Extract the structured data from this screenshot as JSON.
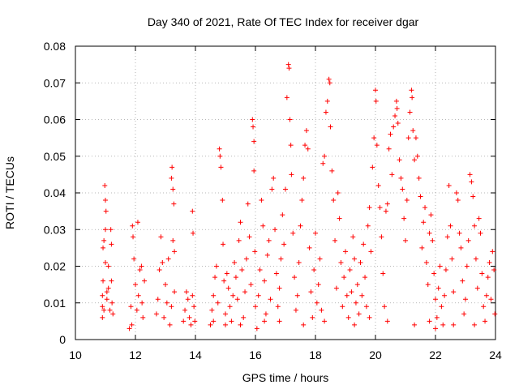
{
  "chart_data": {
    "type": "scatter",
    "title": "Day 340 of 2021, Rate Of TEC Index for receiver dgar",
    "xlabel": "GPS time / hours",
    "ylabel": "ROTI / TECUs",
    "xlim": [
      10,
      24
    ],
    "ylim": [
      0,
      0.08
    ],
    "xticks": [
      "10",
      "12",
      "14",
      "16",
      "18",
      "20",
      "22",
      "24"
    ],
    "yticks": [
      "0",
      "0.01",
      "0.02",
      "0.03",
      "0.04",
      "0.05",
      "0.06",
      "0.07",
      "0.08"
    ],
    "grid": true,
    "marker": "+",
    "color": "#ff0000",
    "series": [
      {
        "points": [
          [
            10.9,
            0.006
          ],
          [
            10.9,
            0.009
          ],
          [
            10.9,
            0.012
          ],
          [
            10.92,
            0.016
          ],
          [
            10.92,
            0.025
          ],
          [
            10.95,
            0.027
          ],
          [
            10.98,
            0.042
          ],
          [
            11.0,
            0.038
          ],
          [
            11.02,
            0.035
          ],
          [
            11.0,
            0.03
          ],
          [
            11.05,
            0.011
          ],
          [
            11.05,
            0.013
          ],
          [
            11.1,
            0.02
          ],
          [
            11.1,
            0.014
          ],
          [
            11.15,
            0.008
          ],
          [
            11.18,
            0.03
          ],
          [
            11.2,
            0.026
          ],
          [
            11.22,
            0.01
          ],
          [
            11.25,
            0.007
          ],
          [
            11.2,
            0.016
          ],
          [
            10.95,
            0.008
          ],
          [
            11.0,
            0.021
          ],
          [
            11.8,
            0.003
          ],
          [
            11.85,
            0.009
          ],
          [
            11.9,
            0.031
          ],
          [
            11.92,
            0.028
          ],
          [
            11.95,
            0.022
          ],
          [
            12.0,
            0.015
          ],
          [
            12.05,
            0.008
          ],
          [
            12.1,
            0.012
          ],
          [
            12.15,
            0.019
          ],
          [
            12.2,
            0.02
          ],
          [
            12.25,
            0.006
          ],
          [
            12.3,
            0.016
          ],
          [
            12.22,
            0.01
          ],
          [
            12.08,
            0.032
          ],
          [
            11.88,
            0.004
          ],
          [
            12.7,
            0.007
          ],
          [
            12.75,
            0.011
          ],
          [
            12.8,
            0.019
          ],
          [
            12.85,
            0.028
          ],
          [
            12.9,
            0.021
          ],
          [
            12.95,
            0.006
          ],
          [
            13.0,
            0.015
          ],
          [
            13.05,
            0.01
          ],
          [
            13.1,
            0.022
          ],
          [
            13.15,
            0.004
          ],
          [
            13.2,
            0.044
          ],
          [
            13.22,
            0.047
          ],
          [
            13.25,
            0.041
          ],
          [
            13.28,
            0.037
          ],
          [
            13.25,
            0.027
          ],
          [
            13.3,
            0.024
          ],
          [
            13.3,
            0.013
          ],
          [
            13.2,
            0.009
          ],
          [
            13.6,
            0.005
          ],
          [
            13.65,
            0.008
          ],
          [
            13.7,
            0.013
          ],
          [
            13.75,
            0.011
          ],
          [
            13.8,
            0.006
          ],
          [
            13.85,
            0.004
          ],
          [
            13.9,
            0.035
          ],
          [
            13.92,
            0.029
          ],
          [
            13.95,
            0.009
          ],
          [
            13.98,
            0.005
          ],
          [
            13.9,
            0.012
          ],
          [
            14.5,
            0.004
          ],
          [
            14.55,
            0.008
          ],
          [
            14.6,
            0.012
          ],
          [
            14.65,
            0.017
          ],
          [
            14.7,
            0.02
          ],
          [
            14.75,
            0.01
          ],
          [
            14.8,
            0.052
          ],
          [
            14.82,
            0.05
          ],
          [
            14.85,
            0.047
          ],
          [
            14.9,
            0.038
          ],
          [
            14.92,
            0.026
          ],
          [
            14.95,
            0.016
          ],
          [
            15.0,
            0.007
          ],
          [
            15.05,
            0.018
          ],
          [
            15.1,
            0.014
          ],
          [
            15.15,
            0.009
          ],
          [
            15.2,
            0.005
          ],
          [
            15.25,
            0.012
          ],
          [
            15.3,
            0.021
          ],
          [
            15.35,
            0.017
          ],
          [
            15.4,
            0.011
          ],
          [
            15.45,
            0.027
          ],
          [
            15.5,
            0.032
          ],
          [
            15.55,
            0.019
          ],
          [
            15.6,
            0.006
          ],
          [
            15.65,
            0.013
          ],
          [
            15.7,
            0.022
          ],
          [
            15.75,
            0.037
          ],
          [
            15.8,
            0.028
          ],
          [
            15.85,
            0.015
          ],
          [
            15.9,
            0.06
          ],
          [
            15.92,
            0.058
          ],
          [
            15.95,
            0.054
          ],
          [
            15.95,
            0.046
          ],
          [
            15.98,
            0.024
          ],
          [
            16.0,
            0.009
          ],
          [
            16.05,
            0.003
          ],
          [
            16.1,
            0.012
          ],
          [
            16.15,
            0.019
          ],
          [
            16.2,
            0.038
          ],
          [
            16.25,
            0.031
          ],
          [
            16.3,
            0.016
          ],
          [
            16.35,
            0.007
          ],
          [
            16.4,
            0.023
          ],
          [
            16.45,
            0.027
          ],
          [
            16.5,
            0.011
          ],
          [
            16.55,
            0.041
          ],
          [
            16.6,
            0.044
          ],
          [
            16.65,
            0.03
          ],
          [
            16.7,
            0.018
          ],
          [
            16.75,
            0.009
          ],
          [
            16.8,
            0.014
          ],
          [
            16.85,
            0.022
          ],
          [
            16.9,
            0.034
          ],
          [
            16.95,
            0.026
          ],
          [
            17.0,
            0.041
          ],
          [
            17.05,
            0.066
          ],
          [
            17.1,
            0.075
          ],
          [
            17.12,
            0.074
          ],
          [
            17.15,
            0.06
          ],
          [
            17.18,
            0.053
          ],
          [
            17.2,
            0.045
          ],
          [
            17.25,
            0.029
          ],
          [
            17.3,
            0.017
          ],
          [
            17.35,
            0.008
          ],
          [
            17.4,
            0.012
          ],
          [
            17.45,
            0.021
          ],
          [
            17.5,
            0.031
          ],
          [
            17.55,
            0.038
          ],
          [
            17.6,
            0.044
          ],
          [
            17.65,
            0.053
          ],
          [
            17.7,
            0.057
          ],
          [
            17.75,
            0.052
          ],
          [
            17.8,
            0.025
          ],
          [
            17.85,
            0.013
          ],
          [
            17.9,
            0.006
          ],
          [
            17.95,
            0.019
          ],
          [
            18.0,
            0.029
          ],
          [
            18.05,
            0.01
          ],
          [
            18.1,
            0.015
          ],
          [
            18.15,
            0.022
          ],
          [
            18.2,
            0.008
          ],
          [
            18.25,
            0.048
          ],
          [
            18.3,
            0.05
          ],
          [
            18.35,
            0.062
          ],
          [
            18.4,
            0.065
          ],
          [
            18.45,
            0.071
          ],
          [
            18.48,
            0.07
          ],
          [
            18.5,
            0.058
          ],
          [
            18.55,
            0.046
          ],
          [
            18.6,
            0.038
          ],
          [
            18.65,
            0.027
          ],
          [
            18.7,
            0.014
          ],
          [
            18.75,
            0.04
          ],
          [
            18.8,
            0.033
          ],
          [
            18.85,
            0.021
          ],
          [
            18.9,
            0.009
          ],
          [
            18.95,
            0.017
          ],
          [
            19.0,
            0.024
          ],
          [
            19.05,
            0.012
          ],
          [
            19.1,
            0.006
          ],
          [
            19.15,
            0.019
          ],
          [
            19.2,
            0.013
          ],
          [
            19.25,
            0.028
          ],
          [
            19.3,
            0.022
          ],
          [
            19.35,
            0.01
          ],
          [
            19.4,
            0.015
          ],
          [
            19.45,
            0.007
          ],
          [
            19.5,
            0.021
          ],
          [
            19.55,
            0.012
          ],
          [
            19.6,
            0.026
          ],
          [
            19.65,
            0.017
          ],
          [
            19.7,
            0.009
          ],
          [
            19.75,
            0.031
          ],
          [
            19.8,
            0.036
          ],
          [
            19.85,
            0.024
          ],
          [
            19.9,
            0.047
          ],
          [
            19.95,
            0.055
          ],
          [
            20.0,
            0.068
          ],
          [
            20.02,
            0.065
          ],
          [
            20.05,
            0.053
          ],
          [
            20.1,
            0.042
          ],
          [
            20.15,
            0.036
          ],
          [
            20.2,
            0.028
          ],
          [
            20.25,
            0.018
          ],
          [
            20.3,
            0.009
          ],
          [
            20.35,
            0.035
          ],
          [
            20.4,
            0.037
          ],
          [
            20.45,
            0.052
          ],
          [
            20.5,
            0.056
          ],
          [
            20.55,
            0.045
          ],
          [
            20.6,
            0.058
          ],
          [
            20.65,
            0.061
          ],
          [
            20.7,
            0.065
          ],
          [
            20.72,
            0.063
          ],
          [
            20.75,
            0.059
          ],
          [
            20.8,
            0.049
          ],
          [
            20.85,
            0.044
          ],
          [
            20.9,
            0.041
          ],
          [
            20.95,
            0.033
          ],
          [
            21.0,
            0.027
          ],
          [
            21.05,
            0.038
          ],
          [
            21.1,
            0.055
          ],
          [
            21.15,
            0.062
          ],
          [
            21.2,
            0.068
          ],
          [
            21.22,
            0.066
          ],
          [
            21.25,
            0.057
          ],
          [
            21.3,
            0.049
          ],
          [
            21.35,
            0.055
          ],
          [
            21.4,
            0.05
          ],
          [
            21.45,
            0.044
          ],
          [
            21.5,
            0.039
          ],
          [
            21.55,
            0.025
          ],
          [
            21.6,
            0.032
          ],
          [
            21.65,
            0.036
          ],
          [
            21.7,
            0.021
          ],
          [
            21.75,
            0.015
          ],
          [
            21.8,
            0.029
          ],
          [
            21.85,
            0.034
          ],
          [
            21.9,
            0.027
          ],
          [
            21.95,
            0.018
          ],
          [
            22.0,
            0.011
          ],
          [
            22.05,
            0.006
          ],
          [
            22.1,
            0.014
          ],
          [
            22.15,
            0.02
          ],
          [
            22.2,
            0.009
          ],
          [
            22.25,
            0.004
          ],
          [
            22.3,
            0.012
          ],
          [
            22.35,
            0.019
          ],
          [
            22.4,
            0.028
          ],
          [
            22.45,
            0.042
          ],
          [
            22.5,
            0.031
          ],
          [
            22.55,
            0.022
          ],
          [
            22.6,
            0.013
          ],
          [
            22.7,
            0.04
          ],
          [
            22.75,
            0.038
          ],
          [
            22.8,
            0.029
          ],
          [
            22.85,
            0.025
          ],
          [
            22.9,
            0.016
          ],
          [
            22.95,
            0.007
          ],
          [
            23.0,
            0.011
          ],
          [
            23.05,
            0.02
          ],
          [
            23.1,
            0.027
          ],
          [
            23.15,
            0.045
          ],
          [
            23.2,
            0.043
          ],
          [
            23.25,
            0.039
          ],
          [
            23.3,
            0.031
          ],
          [
            23.35,
            0.022
          ],
          [
            23.4,
            0.014
          ],
          [
            23.45,
            0.033
          ],
          [
            23.5,
            0.029
          ],
          [
            23.55,
            0.018
          ],
          [
            23.6,
            0.009
          ],
          [
            23.65,
            0.005
          ],
          [
            23.7,
            0.012
          ],
          [
            23.75,
            0.017
          ],
          [
            23.8,
            0.021
          ],
          [
            23.85,
            0.011
          ],
          [
            23.9,
            0.024
          ],
          [
            23.95,
            0.019
          ],
          [
            23.98,
            0.007
          ],
          [
            15.5,
            0.004
          ],
          [
            16.3,
            0.005
          ],
          [
            17.6,
            0.004
          ],
          [
            18.3,
            0.005
          ],
          [
            19.3,
            0.004
          ],
          [
            20.4,
            0.005
          ],
          [
            21.3,
            0.004
          ],
          [
            22.6,
            0.004
          ],
          [
            23.3,
            0.004
          ],
          [
            15.0,
            0.004
          ],
          [
            16.8,
            0.005
          ],
          [
            19.8,
            0.006
          ],
          [
            21.8,
            0.005
          ],
          [
            14.6,
            0.005
          ],
          [
            22.0,
            0.003
          ]
        ]
      }
    ]
  }
}
